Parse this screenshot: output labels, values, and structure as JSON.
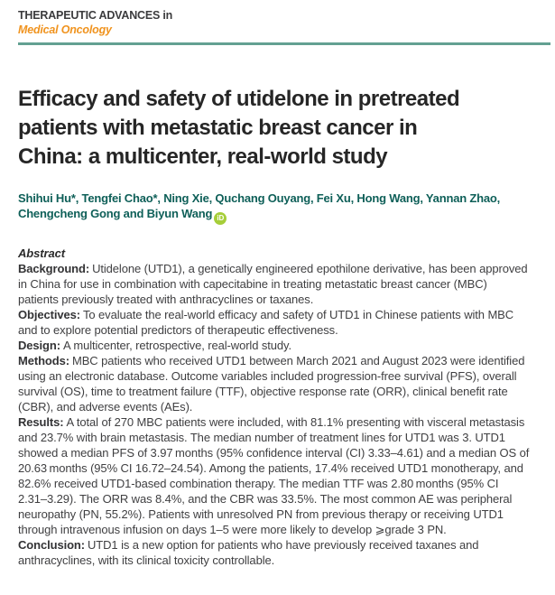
{
  "masthead": {
    "series": "THERAPEUTIC ADVANCES in",
    "journal": "Medical Oncology"
  },
  "article": {
    "title_lines": [
      "Efficacy and safety of utidelone in pretreated",
      "patients with metastatic breast cancer in",
      "China: a multicenter, real-world study"
    ],
    "author_lines": [
      "Shihui Hu*, Tengfei Chao*, Ning Xie, Quchang Ouyang, Fei Xu, Hong Wang, Yannan Zhao,",
      "Chengcheng Gong and Biyun Wang"
    ],
    "orcid_label": "iD"
  },
  "abstract": {
    "heading": "Abstract",
    "sections": [
      {
        "label": "Background:",
        "text": "Utidelone (UTD1), a genetically engineered epothilone derivative, has been approved in China for use in combination with capecitabine in treating metastatic breast cancer (MBC) patients previously treated with anthracyclines or taxanes."
      },
      {
        "label": "Objectives:",
        "text": "To evaluate the real-world efficacy and safety of UTD1 in Chinese patients with MBC and to explore potential predictors of therapeutic effectiveness."
      },
      {
        "label": "Design:",
        "text": "A multicenter, retrospective, real-world study."
      },
      {
        "label": "Methods:",
        "text": "MBC patients who received UTD1 between March 2021 and August 2023 were identified using an electronic database. Outcome variables included progression-free survival (PFS), overall survival (OS), time to treatment failure (TTF), objective response rate (ORR), clinical benefit rate (CBR), and adverse events (AEs)."
      },
      {
        "label": "Results:",
        "text": "A total of 270 MBC patients were included, with 81.1% presenting with visceral metastasis and 23.7% with brain metastasis. The median number of treatment lines for UTD1 was 3. UTD1 showed a median PFS of 3.97 months (95% confidence interval (CI) 3.33–4.61) and a median OS of 20.63 months (95% CI 16.72–24.54). Among the patients, 17.4% received UTD1 monotherapy, and 82.6% received UTD1-based combination therapy. The median TTF was 2.80 months (95% CI 2.31–3.29). The ORR was 8.4%, and the CBR was 33.5%. The most common AE was peripheral neuropathy (PN, 55.2%). Patients with unresolved PN from previous therapy or receiving UTD1 through intravenous infusion on days 1–5 were more likely to develop ⩾grade 3 PN."
      },
      {
        "label": "Conclusion:",
        "text": "UTD1 is a new option for patients who have previously received taxanes and anthracyclines, with its clinical toxicity controllable."
      }
    ]
  },
  "colors": {
    "header_text": "#3b3b3d",
    "journal_orange": "#f0931e",
    "rule_teal": "#63a092",
    "author_teal": "#0e5f58",
    "orcid_green": "#a6ce39",
    "body_text": "#3f3f41",
    "title_color": "#262626"
  }
}
